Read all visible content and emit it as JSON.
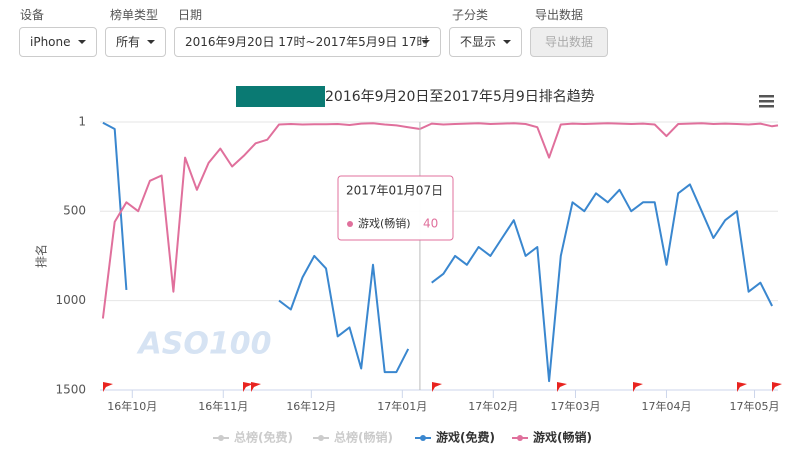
{
  "controls": {
    "device_label": "设备",
    "device_value": "iPhone",
    "list_type_label": "榜单类型",
    "list_type_value": "所有",
    "date_label": "日期",
    "date_value": "2016年9月20日 17时~2017年5月9日 17时",
    "subcategory_label": "子分类",
    "subcategory_value": "不显示",
    "export_label": "导出数据",
    "export_button": "导出数据"
  },
  "chart_data": {
    "type": "line",
    "title": "2016年9月20日至2017年5月9日排名趋势",
    "ylabel": "排名",
    "watermark": "ASO100",
    "x": [
      "2016-09-21",
      "2016-09-25",
      "2016-09-29",
      "2016-10-03",
      "2016-10-07",
      "2016-10-11",
      "2016-10-15",
      "2016-10-19",
      "2016-10-23",
      "2016-10-27",
      "2016-10-31",
      "2016-11-04",
      "2016-11-08",
      "2016-11-12",
      "2016-11-16",
      "2016-11-20",
      "2016-11-24",
      "2016-11-28",
      "2016-12-02",
      "2016-12-06",
      "2016-12-10",
      "2016-12-14",
      "2016-12-18",
      "2016-12-22",
      "2016-12-26",
      "2016-12-30",
      "2017-01-03",
      "2017-01-07",
      "2017-01-11",
      "2017-01-15",
      "2017-01-19",
      "2017-01-23",
      "2017-01-27",
      "2017-01-31",
      "2017-02-04",
      "2017-02-08",
      "2017-02-12",
      "2017-02-16",
      "2017-02-20",
      "2017-02-24",
      "2017-02-28",
      "2017-03-04",
      "2017-03-08",
      "2017-03-12",
      "2017-03-16",
      "2017-03-20",
      "2017-03-24",
      "2017-03-28",
      "2017-04-01",
      "2017-04-05",
      "2017-04-09",
      "2017-04-13",
      "2017-04-17",
      "2017-04-21",
      "2017-04-25",
      "2017-04-29",
      "2017-05-03",
      "2017-05-07",
      "2017-05-09"
    ],
    "xlim": [
      "2016-09-20",
      "2017-05-09"
    ],
    "xticks": [
      {
        "value": "2016-10-01",
        "label": "16年10月"
      },
      {
        "value": "2016-11-01",
        "label": "16年11月"
      },
      {
        "value": "2016-12-01",
        "label": "16年12月"
      },
      {
        "value": "2017-01-01",
        "label": "17年01月"
      },
      {
        "value": "2017-02-01",
        "label": "17年02月"
      },
      {
        "value": "2017-03-01",
        "label": "17年03月"
      },
      {
        "value": "2017-04-01",
        "label": "17年04月"
      },
      {
        "value": "2017-05-01",
        "label": "17年05月"
      }
    ],
    "ylim": [
      1,
      1500
    ],
    "y_inverted": true,
    "yticks": [
      1,
      500,
      1000,
      1500
    ],
    "grid": true,
    "series": [
      {
        "name": "总榜(免费)",
        "color": "#cccccc",
        "visible": false,
        "values": [
          null,
          null,
          null,
          null,
          null,
          null,
          null,
          null,
          null,
          null,
          null,
          null,
          null,
          null,
          null,
          null,
          null,
          null,
          null,
          null,
          null,
          null,
          null,
          null,
          null,
          null,
          null,
          null,
          null,
          null,
          null,
          null,
          null,
          null,
          null,
          null,
          null,
          null,
          null,
          null,
          null,
          null,
          null,
          null,
          null,
          null,
          null,
          null,
          null,
          null,
          null,
          null,
          null,
          null,
          null,
          null,
          null,
          null,
          null
        ]
      },
      {
        "name": "总榜(畅销)",
        "color": "#cccccc",
        "visible": false,
        "values": [
          null,
          null,
          null,
          null,
          null,
          null,
          null,
          null,
          null,
          null,
          null,
          null,
          null,
          null,
          null,
          null,
          null,
          null,
          null,
          null,
          null,
          null,
          null,
          null,
          null,
          null,
          null,
          null,
          null,
          null,
          null,
          null,
          null,
          null,
          null,
          null,
          null,
          null,
          null,
          null,
          null,
          null,
          null,
          null,
          null,
          null,
          null,
          null,
          null,
          null,
          null,
          null,
          null,
          null,
          null,
          null,
          null,
          null,
          null
        ]
      },
      {
        "name": "游戏(免费)",
        "color": "#3a87cf",
        "visible": true,
        "values": [
          5,
          40,
          940,
          null,
          null,
          null,
          null,
          null,
          null,
          null,
          null,
          null,
          null,
          null,
          null,
          1000,
          1050,
          870,
          750,
          820,
          1200,
          1150,
          1380,
          800,
          1400,
          1400,
          1270,
          null,
          900,
          850,
          750,
          800,
          700,
          750,
          650,
          550,
          750,
          700,
          1450,
          750,
          450,
          500,
          400,
          450,
          380,
          500,
          450,
          450,
          800,
          400,
          350,
          500,
          650,
          550,
          500,
          950,
          900,
          1030,
          null
        ]
      },
      {
        "name": "游戏(畅销)",
        "color": "#e0709c",
        "visible": true,
        "values": [
          1100,
          560,
          450,
          500,
          330,
          300,
          950,
          200,
          380,
          230,
          150,
          250,
          190,
          120,
          100,
          15,
          12,
          15,
          14,
          14,
          12,
          18,
          10,
          8,
          15,
          20,
          30,
          40,
          10,
          15,
          12,
          10,
          8,
          12,
          10,
          8,
          12,
          30,
          200,
          15,
          10,
          12,
          10,
          8,
          10,
          12,
          10,
          15,
          80,
          12,
          10,
          8,
          12,
          10,
          12,
          15,
          10,
          25,
          20
        ]
      }
    ],
    "tooltip": {
      "date": "2017年01月07日",
      "series": "游戏(畅销)",
      "value": 40
    }
  }
}
